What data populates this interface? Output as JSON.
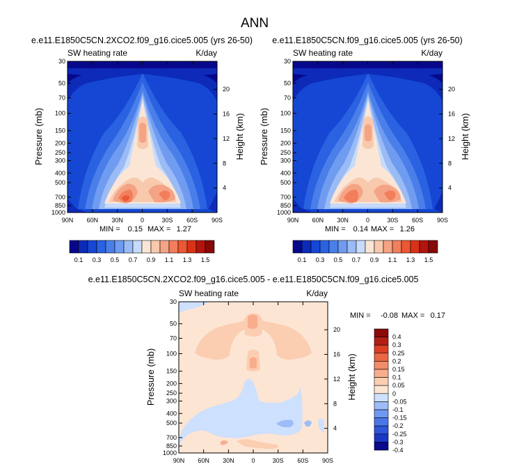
{
  "figure": {
    "title": "ANN"
  },
  "palette_full": [
    "#08088c",
    "#0d2ab8",
    "#1547d4",
    "#2a62e2",
    "#4a7fea",
    "#6f9cf0",
    "#9bbbf5",
    "#c7dbfb",
    "#fbe6d6",
    "#f8c9ad",
    "#f5a385",
    "#f27e5c",
    "#ec5734",
    "#d93216",
    "#b3140d",
    "#860909"
  ],
  "palette_diff": [
    "#0a0a8c",
    "#1a37c5",
    "#2f55da",
    "#4a76e8",
    "#6f98f2",
    "#9dbcf8",
    "#cde0fd",
    "#fde5d4",
    "#fbcdb1",
    "#f8ad8d",
    "#f28c6a",
    "#eb6643",
    "#dc3e23",
    "#b31e16",
    "#8a0a0a"
  ],
  "chart_data": [
    {
      "type": "heatmap",
      "title": "e.e11.E1850C5CN.2XCO2.f09_g16.cice5.005 (yrs 26-50)",
      "subtitle_left": "SW heating rate",
      "subtitle_right": "K/day",
      "xlabel": "",
      "ylabel": "Pressure (mb)",
      "y2label": "Height (km)",
      "x_ticks": [
        "90N",
        "60N",
        "30N",
        "0",
        "30S",
        "60S",
        "90S"
      ],
      "y_ticks": [
        "30",
        "50",
        "70",
        "100",
        "150",
        "200",
        "250",
        "300",
        "400",
        "500",
        "700",
        "850",
        "1000"
      ],
      "y_tick_values": [
        30,
        50,
        70,
        100,
        150,
        200,
        250,
        300,
        400,
        500,
        700,
        850,
        1000
      ],
      "y2_ticks": [
        "4",
        "8",
        "12",
        "16",
        "20"
      ],
      "y2_tick_values": [
        4,
        8,
        12,
        16,
        20
      ],
      "xlim": [
        90,
        -90
      ],
      "ylim": [
        1000,
        30
      ],
      "y_scale": "log",
      "min_label": "MIN =",
      "min_value": "0.15",
      "max_label": "MAX =",
      "max_value": "1.27",
      "levels": [
        "0.1",
        "0.3",
        "0.5",
        "0.7",
        "0.9",
        "1.1",
        "1.3",
        "1.5"
      ],
      "colorbar": "horizontal-below"
    },
    {
      "type": "heatmap",
      "title": "e.e11.E1850C5CN.f09_g16.cice5.005 (yrs 26-50)",
      "subtitle_left": "SW heating rate",
      "subtitle_right": "K/day",
      "xlabel": "",
      "ylabel": "Pressure (mb)",
      "y2label": "Height (km)",
      "x_ticks": [
        "90N",
        "60N",
        "30N",
        "0",
        "30S",
        "60S",
        "90S"
      ],
      "y_ticks": [
        "30",
        "50",
        "70",
        "100",
        "150",
        "200",
        "250",
        "300",
        "400",
        "500",
        "700",
        "850",
        "1000"
      ],
      "y_tick_values": [
        30,
        50,
        70,
        100,
        150,
        200,
        250,
        300,
        400,
        500,
        700,
        850,
        1000
      ],
      "y2_ticks": [
        "4",
        "8",
        "12",
        "16",
        "20"
      ],
      "y2_tick_values": [
        4,
        8,
        12,
        16,
        20
      ],
      "xlim": [
        90,
        -90
      ],
      "ylim": [
        1000,
        30
      ],
      "y_scale": "log",
      "min_label": "MIN =",
      "min_value": "0.14",
      "max_label": "MAX =",
      "max_value": "1.26",
      "levels": [
        "0.1",
        "0.3",
        "0.5",
        "0.7",
        "0.9",
        "1.1",
        "1.3",
        "1.5"
      ],
      "colorbar": "horizontal-below"
    },
    {
      "type": "heatmap",
      "title": "e.e11.E1850C5CN.2XCO2.f09_g16.cice5.005 - e.e11.E1850C5CN.f09_g16.cice5.005",
      "subtitle_left": "SW heating rate",
      "subtitle_right": "K/day",
      "xlabel": "",
      "ylabel": "Pressure (mb)",
      "y2label": "Height (km)",
      "x_ticks": [
        "90N",
        "60N",
        "30N",
        "0",
        "30S",
        "60S",
        "90S"
      ],
      "y_ticks": [
        "30",
        "50",
        "70",
        "100",
        "150",
        "200",
        "250",
        "300",
        "400",
        "500",
        "700",
        "850",
        "1000"
      ],
      "y_tick_values": [
        30,
        50,
        70,
        100,
        150,
        200,
        250,
        300,
        400,
        500,
        700,
        850,
        1000
      ],
      "y2_ticks": [
        "4",
        "8",
        "12",
        "16",
        "20"
      ],
      "y2_tick_values": [
        4,
        8,
        12,
        16,
        20
      ],
      "xlim": [
        90,
        -90
      ],
      "ylim": [
        1000,
        30
      ],
      "y_scale": "log",
      "min_label": "MIN =",
      "min_value": "-0.08",
      "max_label": "MAX =",
      "max_value": "0.17",
      "levels": [
        "0.4",
        "0.3",
        "0.25",
        "0.2",
        "0.15",
        "0.1",
        "0.05",
        "0",
        "-0.05",
        "-0.1",
        "-0.15",
        "-0.2",
        "-0.25",
        "-0.3",
        "-0.4"
      ],
      "colorbar": "vertical-right"
    }
  ]
}
